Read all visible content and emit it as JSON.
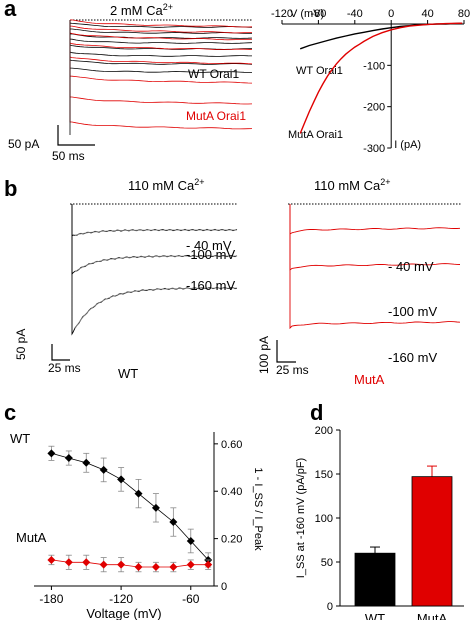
{
  "panels": {
    "a": {
      "letter": "a",
      "condition": "2 mM Ca",
      "condition_sup": "2+",
      "wt_label": "WT Orai1",
      "muta_label": "MutA Orai1",
      "scale_y": "50 pA",
      "scale_x": "50 ms"
    },
    "b": {
      "letter": "b",
      "condition": "110 mM Ca",
      "condition_sup": "2+",
      "voltages": [
        "- 40 mV",
        "-100 mV",
        "-160 mV"
      ],
      "wt_label": "WT",
      "muta_label": "MutA",
      "wt_scale_y": "50 pA",
      "wt_scale_x": "25 ms",
      "muta_scale_y": "100 pA",
      "muta_scale_x": "25 ms"
    },
    "c": {
      "letter": "c"
    },
    "d": {
      "letter": "d"
    }
  },
  "colors": {
    "wt": "#000000",
    "muta": "#e00000",
    "fit": "#888888"
  },
  "chart_data": [
    {
      "id": "iv",
      "type": "line",
      "xlabel": "V (mV)",
      "ylabel": "I (pA)",
      "xlim": [
        -120,
        80
      ],
      "ylim": [
        -300,
        0
      ],
      "xticks": [
        -120,
        -80,
        -40,
        0,
        40,
        80
      ],
      "yticks": [
        -100,
        -200,
        -300
      ],
      "series": [
        {
          "name": "WT Orai1",
          "color": "#000000",
          "x": [
            -100,
            -90,
            -80,
            -70,
            -60,
            -50,
            -40,
            -30,
            -20,
            -10,
            0,
            10,
            20,
            30,
            40,
            50,
            60,
            70,
            78
          ],
          "y": [
            -60,
            -52,
            -46,
            -40,
            -34,
            -29,
            -24,
            -20,
            -16,
            -12,
            -9,
            -6,
            -4,
            -2,
            -1,
            0,
            0,
            1,
            2
          ]
        },
        {
          "name": "MutA Orai1",
          "color": "#e00000",
          "x": [
            -100,
            -95,
            -90,
            -85,
            -80,
            -75,
            -70,
            -65,
            -60,
            -55,
            -50,
            -45,
            -40,
            -35,
            -30,
            -25,
            -20,
            -10,
            0,
            10,
            20,
            40,
            60,
            78
          ],
          "y": [
            -265,
            -238,
            -212,
            -188,
            -165,
            -145,
            -126,
            -110,
            -96,
            -84,
            -73,
            -64,
            -56,
            -49,
            -42,
            -36,
            -30,
            -21,
            -14,
            -9,
            -5,
            -1,
            1,
            2
          ]
        }
      ]
    },
    {
      "id": "inactivation",
      "type": "scatter",
      "xlabel": "Voltage (mV)",
      "ylabel": "1 - I_SS / I_Peak",
      "xlim": [
        -195,
        -40
      ],
      "ylim": [
        0,
        0.65
      ],
      "xticks": [
        -180,
        -120,
        -60
      ],
      "yticks": [
        0,
        0.2,
        0.4,
        0.6
      ],
      "ytick_labels": [
        "0",
        "0.20",
        "0.40",
        "0.60"
      ],
      "series": [
        {
          "name": "WT",
          "color": "#000000",
          "x": [
            -180,
            -165,
            -150,
            -135,
            -120,
            -105,
            -90,
            -75,
            -60,
            -45
          ],
          "y": [
            0.56,
            0.54,
            0.52,
            0.49,
            0.45,
            0.39,
            0.33,
            0.27,
            0.19,
            0.11
          ],
          "err": [
            0.03,
            0.03,
            0.04,
            0.05,
            0.05,
            0.06,
            0.06,
            0.06,
            0.05,
            0.03
          ]
        },
        {
          "name": "MutA",
          "color": "#e00000",
          "x": [
            -180,
            -165,
            -150,
            -135,
            -120,
            -105,
            -90,
            -75,
            -60,
            -45
          ],
          "y": [
            0.11,
            0.1,
            0.1,
            0.09,
            0.09,
            0.08,
            0.08,
            0.08,
            0.09,
            0.09
          ],
          "err": [
            0.02,
            0.03,
            0.03,
            0.03,
            0.03,
            0.02,
            0.02,
            0.02,
            0.02,
            0.02
          ]
        }
      ]
    },
    {
      "id": "iss",
      "type": "bar",
      "ylabel": "I_SS at -160 mV (pA/pF)",
      "ylim": [
        0,
        200
      ],
      "yticks": [
        0,
        50,
        100,
        150,
        200
      ],
      "categories": [
        "WT",
        "MutA"
      ],
      "values": [
        60,
        147
      ],
      "errors": [
        7,
        12
      ],
      "colors": [
        "#000000",
        "#e00000"
      ]
    }
  ]
}
